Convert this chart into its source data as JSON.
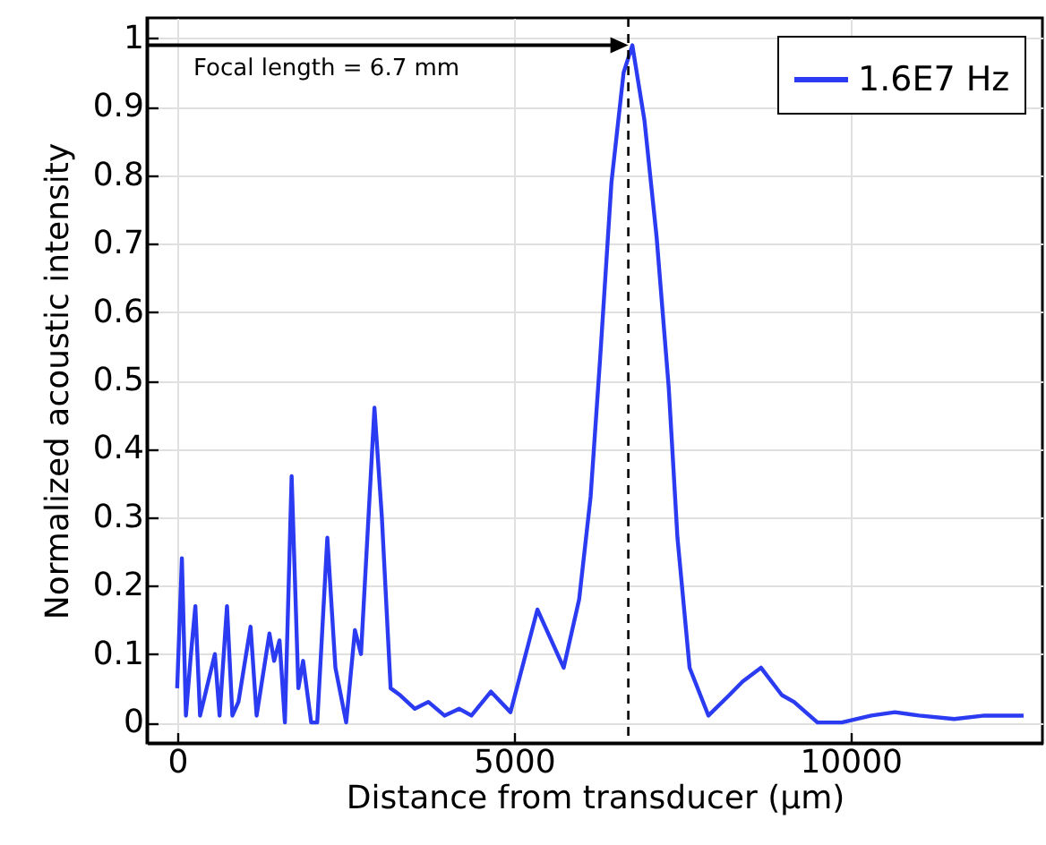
{
  "chart_data": {
    "type": "line",
    "xlabel": "Distance from transducer (µm)",
    "ylabel": "Normalized acoustic intensity",
    "x": [
      0,
      70,
      130,
      200,
      270,
      340,
      560,
      630,
      740,
      820,
      910,
      1090,
      1180,
      1370,
      1440,
      1520,
      1600,
      1700,
      1800,
      1870,
      1990,
      2080,
      2230,
      2350,
      2510,
      2640,
      2730,
      2930,
      3040,
      3170,
      3310,
      3530,
      3730,
      3970,
      4190,
      4370,
      4660,
      4950,
      5350,
      5740,
      5970,
      6140,
      6280,
      6450,
      6630,
      6760,
      6940,
      7120,
      7300,
      7430,
      7610,
      7890,
      8200,
      8400,
      8670,
      8980,
      9160,
      9510,
      9870,
      10310,
      10660,
      11020,
      11540,
      11990,
      12570
    ],
    "series": [
      {
        "name": "1.6E7 Hz",
        "color": "#2b3bf2",
        "values": [
          0.05,
          0.24,
          0.01,
          0.095,
          0.17,
          0.01,
          0.1,
          0.01,
          0.17,
          0.01,
          0.03,
          0.14,
          0.01,
          0.13,
          0.09,
          0.12,
          0.0,
          0.36,
          0.05,
          0.09,
          0.0,
          0.0,
          0.27,
          0.08,
          0.0,
          0.135,
          0.1,
          0.46,
          0.3,
          0.05,
          0.04,
          0.02,
          0.03,
          0.01,
          0.02,
          0.01,
          0.045,
          0.015,
          0.165,
          0.08,
          0.18,
          0.33,
          0.53,
          0.79,
          0.95,
          0.99,
          0.88,
          0.71,
          0.49,
          0.27,
          0.08,
          0.01,
          0.04,
          0.06,
          0.08,
          0.04,
          0.03,
          0.0,
          0.0,
          0.01,
          0.015,
          0.01,
          0.005,
          0.01,
          0.01
        ]
      }
    ],
    "xlim": [
      -450,
      12850
    ],
    "xticks": [
      0,
      5000,
      10000
    ],
    "ylim": [
      -0.03,
      1.03
    ],
    "yticks": [
      0,
      0.1,
      0.2,
      0.3,
      0.4,
      0.5,
      0.6,
      0.7,
      0.8,
      0.9,
      1
    ],
    "ref_lines": [
      {
        "axis": "x",
        "value": 6700,
        "line_style": "dashed",
        "color": "#000000"
      }
    ],
    "annotations": [
      "Focal length = 6.7 mm"
    ],
    "grid": true,
    "legend": "top right"
  }
}
